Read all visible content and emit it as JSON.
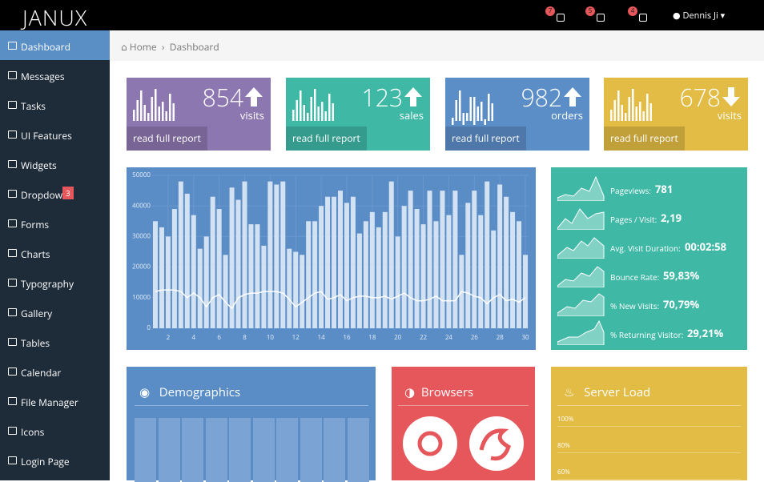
{
  "header": {
    "brand": "JANUX",
    "notifications": [
      "7",
      "5",
      "4"
    ],
    "user": "Dennis Ji"
  },
  "sidebar": {
    "items": [
      {
        "label": "Dashboard",
        "active": true
      },
      {
        "label": "Messages"
      },
      {
        "label": "Tasks"
      },
      {
        "label": "UI Features"
      },
      {
        "label": "Widgets"
      },
      {
        "label": "Dropdown",
        "badge": "3"
      },
      {
        "label": "Forms"
      },
      {
        "label": "Charts"
      },
      {
        "label": "Typography"
      },
      {
        "label": "Gallery"
      },
      {
        "label": "Tables"
      },
      {
        "label": "Calendar"
      },
      {
        "label": "File Manager"
      },
      {
        "label": "Icons"
      },
      {
        "label": "Login Page"
      }
    ]
  },
  "breadcrumb": [
    "Home",
    "Dashboard"
  ],
  "cards": [
    {
      "value": "854",
      "label": "visits",
      "link": "read full report",
      "trend": "up",
      "color": "#8d77b0"
    },
    {
      "value": "123",
      "label": "sales",
      "link": "read full report",
      "trend": "up",
      "color": "#3fb8a6"
    },
    {
      "value": "982",
      "label": "orders",
      "link": "read full report",
      "trend": "up",
      "color": "#5b8ec7"
    },
    {
      "value": "678",
      "label": "visits",
      "link": "read full report",
      "trend": "down",
      "color": "#e3bc45"
    }
  ],
  "chart_data": {
    "type": "bar",
    "x": [
      1,
      1.5,
      2,
      2.5,
      3,
      3.5,
      4,
      4.5,
      5,
      5.5,
      6,
      6.5,
      7,
      7.5,
      8,
      8.5,
      9,
      9.5,
      10,
      10.5,
      11,
      11.5,
      12,
      12.5,
      13,
      13.5,
      14,
      14.5,
      15,
      15.5,
      16,
      16.5,
      17,
      17.5,
      18,
      18.5,
      19,
      19.5,
      20,
      20.5,
      21,
      21.5,
      22,
      22.5,
      23,
      23.5,
      24,
      24.5,
      25,
      25.5,
      26,
      26.5,
      27,
      27.5,
      28,
      28.5,
      29,
      29.5,
      30
    ],
    "series": [
      {
        "type": "bar",
        "color": "#d3e2f3",
        "values": [
          35000,
          33000,
          30000,
          39000,
          48000,
          44000,
          37000,
          26000,
          30000,
          43000,
          39000,
          24000,
          46000,
          42000,
          48000,
          34000,
          34000,
          27000,
          48000,
          47000,
          48000,
          26000,
          25000,
          24000,
          35000,
          35000,
          40000,
          43000,
          43000,
          45000,
          41000,
          43000,
          31000,
          35000,
          38000,
          33000,
          38000,
          48000,
          30000,
          40000,
          45000,
          39000,
          34000,
          45000,
          35000,
          45000,
          37000,
          45000,
          24000,
          41000,
          45000,
          37000,
          48000,
          32000,
          47000,
          43000,
          38000,
          35000,
          24000
        ]
      },
      {
        "type": "line",
        "color": "#ffffff",
        "values": [
          12000,
          12500,
          12500,
          12500,
          12000,
          10000,
          11500,
          10000,
          7000,
          10000,
          11000,
          8500,
          6500,
          10000,
          11000,
          11500,
          11500,
          12000,
          12000,
          12000,
          11500,
          9500,
          7000,
          8500,
          10000,
          11500,
          12000,
          9500,
          10000,
          11000,
          9000,
          10000,
          10500,
          10500,
          10000,
          10000,
          10500,
          9500,
          10500,
          11500,
          10000,
          9000,
          9000,
          9500,
          10500,
          9000,
          9000,
          9000,
          12000,
          11500,
          10500,
          10000,
          8000,
          10000,
          11000,
          9000,
          9500,
          8500,
          10000
        ]
      }
    ],
    "xlim": [
      0.75,
      30.25
    ],
    "xticks": [
      2,
      4,
      6,
      8,
      10,
      12,
      14,
      16,
      18,
      20,
      22,
      24,
      26,
      28,
      30
    ],
    "ylim": [
      0,
      50000
    ],
    "yticks": [
      0,
      10000,
      20000,
      30000,
      40000,
      50000
    ],
    "grid": true
  },
  "stats": [
    {
      "label": "Pageviews:",
      "value": "781"
    },
    {
      "label": "Pages / Visit:",
      "value": "2,19"
    },
    {
      "label": "Avg. Visit Duration:",
      "value": "00:02:58"
    },
    {
      "label": "Bounce Rate:",
      "value": "59,83%"
    },
    {
      "label": "% New Visits:",
      "value": "70,79%"
    },
    {
      "label": "% Returning Visitor:",
      "value": "29,21%"
    }
  ],
  "panels": [
    {
      "title": "Demographics"
    },
    {
      "title": "Browsers"
    },
    {
      "title": "Server Load"
    }
  ],
  "server_load": {
    "ticks": [
      "100%",
      "80%",
      "60%"
    ]
  }
}
